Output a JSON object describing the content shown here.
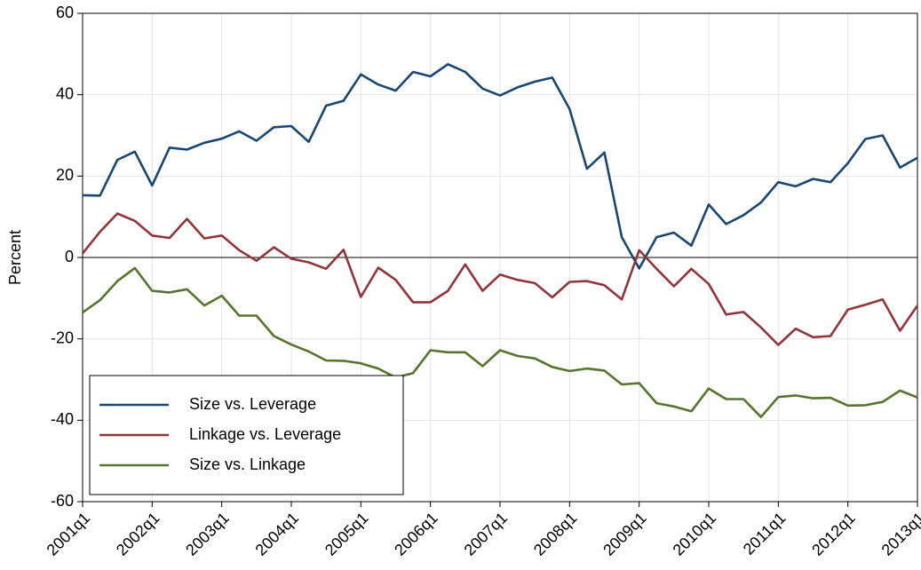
{
  "chart_data": {
    "type": "line",
    "y_label": "Percent",
    "categories": [
      "2001q1",
      null,
      null,
      null,
      "2002q1",
      null,
      null,
      null,
      "2003q1",
      null,
      null,
      null,
      "2004q1",
      null,
      null,
      null,
      "2005q1",
      null,
      null,
      null,
      "2006q1",
      null,
      null,
      null,
      "2007q1",
      null,
      null,
      null,
      "2008q1",
      null,
      null,
      null,
      "2009q1",
      null,
      null,
      null,
      "2010q1",
      null,
      null,
      null,
      "2011q1",
      null,
      null,
      null,
      "2012q1",
      null,
      null,
      null,
      "2013q1"
    ],
    "series": [
      {
        "name": "Size vs. Leverage",
        "color": "#1a476f",
        "values": [
          15.3,
          15.2,
          24,
          26,
          17.7,
          27,
          26.5,
          28.2,
          29.2,
          31,
          28.7,
          32,
          32.3,
          28.4,
          37.3,
          38.5,
          45,
          42.5,
          41,
          45.6,
          44.5,
          47.5,
          45.6,
          41.5,
          39.8,
          41.8,
          43.2,
          44.2,
          36.5,
          21.8,
          25.8,
          5,
          -2.7,
          5,
          6.1,
          2.9,
          13,
          8.2,
          10.4,
          13.5,
          18.5,
          17.5,
          19.3,
          18.5,
          23.2,
          29.1,
          30,
          22.1,
          24.5
        ]
      },
      {
        "name": "Linkage vs. Leverage",
        "color": "#90353b",
        "values": [
          1,
          6.3,
          10.8,
          9,
          5.4,
          4.8,
          9.5,
          4.7,
          5.4,
          1.8,
          -0.8,
          2.5,
          -0.3,
          -1.2,
          -2.8,
          1.9,
          -9.7,
          -2.5,
          -5.5,
          -11,
          -11,
          -8.2,
          -1.7,
          -8.2,
          -4.2,
          -5.5,
          -6.3,
          -9.8,
          -6,
          -5.8,
          -6.8,
          -10.3,
          1.8,
          -2.8,
          -7.1,
          -2.8,
          -6.5,
          -14,
          -13.4,
          -17.2,
          -21.5,
          -17.5,
          -19.6,
          -19.3,
          -12.8,
          -11.6,
          -10.3,
          -18,
          -11.8
        ]
      },
      {
        "name": "Size vs. Linkage",
        "color": "#55752f",
        "values": [
          -13.5,
          -10.5,
          -5.8,
          -2.6,
          -8.2,
          -8.6,
          -7.8,
          -11.8,
          -9.4,
          -14.3,
          -14.3,
          -19.3,
          -21.4,
          -23.1,
          -25.3,
          -25.4,
          -26,
          -27.3,
          -29.5,
          -28.4,
          -22.8,
          -23.3,
          -23.3,
          -26.7,
          -22.8,
          -24.2,
          -24.8,
          -26.9,
          -27.9,
          -27.3,
          -27.8,
          -31.2,
          -30.9,
          -35.8,
          -36.6,
          -37.8,
          -32.2,
          -34.8,
          -34.8,
          -39.2,
          -34.3,
          -33.9,
          -34.6,
          -34.5,
          -36.4,
          -36.3,
          -35.5,
          -32.7,
          -34.4
        ]
      }
    ],
    "ylim": [
      -60,
      60
    ],
    "yticks": [
      -60,
      -40,
      -20,
      0,
      20,
      40,
      60
    ],
    "hline": 0,
    "grid": true,
    "legend": "lower left"
  }
}
